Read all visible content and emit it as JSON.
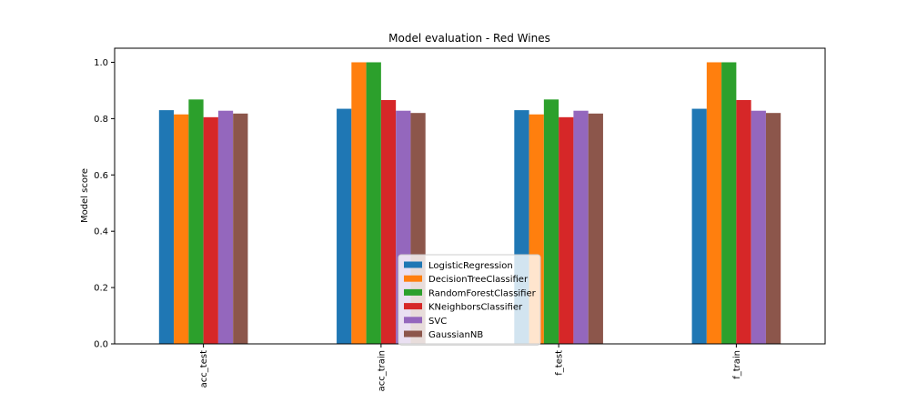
{
  "chart_data": {
    "type": "bar",
    "title": "Model evaluation - Red Wines",
    "xlabel": "",
    "ylabel": "Model score",
    "categories": [
      "acc_test",
      "acc_train",
      "f_test",
      "f_train"
    ],
    "ylim": [
      0,
      1.05
    ],
    "yticks": [
      0.0,
      0.2,
      0.4,
      0.6,
      0.8,
      1.0
    ],
    "ytick_labels": [
      "0.0",
      "0.2",
      "0.4",
      "0.6",
      "0.8",
      "1.0"
    ],
    "grid": false,
    "legend_position": "lower-center",
    "series": [
      {
        "name": "LogisticRegression",
        "color": "#1f77b4",
        "values": [
          0.83,
          0.835,
          0.83,
          0.835
        ]
      },
      {
        "name": "DecisionTreeClassifier",
        "color": "#ff7f0e",
        "values": [
          0.815,
          1.0,
          0.815,
          1.0
        ]
      },
      {
        "name": "RandomForestClassifier",
        "color": "#2ca02c",
        "values": [
          0.868,
          1.0,
          0.868,
          1.0
        ]
      },
      {
        "name": "KNeighborsClassifier",
        "color": "#d62728",
        "values": [
          0.805,
          0.866,
          0.805,
          0.866
        ]
      },
      {
        "name": "SVC",
        "color": "#9467bd",
        "values": [
          0.828,
          0.828,
          0.828,
          0.828
        ]
      },
      {
        "name": "GaussianNB",
        "color": "#8c564b",
        "values": [
          0.818,
          0.82,
          0.818,
          0.82
        ]
      }
    ]
  }
}
